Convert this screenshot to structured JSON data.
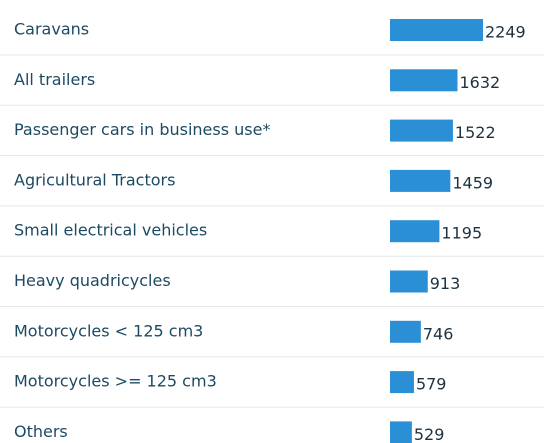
{
  "chart_data": {
    "type": "bar",
    "orientation": "horizontal",
    "categories": [
      "Caravans",
      "All trailers",
      "Passenger cars in business use*",
      "Agricultural Tractors",
      "Small electrical vehicles",
      "Heavy quadricycles",
      "Motorcycles < 125 cm3",
      "Motorcycles >= 125 cm3",
      "Others"
    ],
    "values": [
      2249,
      1632,
      1522,
      1459,
      1195,
      913,
      746,
      579,
      529
    ],
    "color": "#2b8fd6"
  }
}
